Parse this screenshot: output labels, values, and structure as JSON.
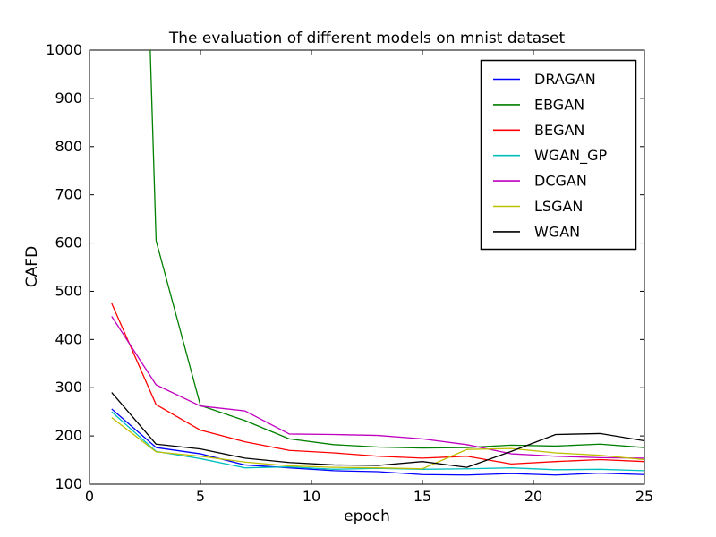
{
  "figure": {
    "title": "The evaluation of different models on mnist dataset",
    "xlabel": "epoch",
    "ylabel": "CAFD"
  },
  "chart_data": {
    "type": "line",
    "title": "The evaluation of different models on mnist dataset",
    "xlabel": "epoch",
    "ylabel": "CAFD",
    "xlim": [
      0,
      25
    ],
    "ylim": [
      100,
      1000
    ],
    "xticks": [
      0,
      5,
      10,
      15,
      20,
      25
    ],
    "yticks": [
      100,
      200,
      300,
      400,
      500,
      600,
      700,
      800,
      900,
      1000
    ],
    "grid": false,
    "legend_position": "upper right",
    "x": [
      1,
      3,
      5,
      7,
      9,
      11,
      13,
      15,
      17,
      19,
      21,
      23,
      25
    ],
    "series": [
      {
        "name": "DRAGAN",
        "color": "#0000ff",
        "values": [
          256,
          176,
          163,
          140,
          134,
          128,
          126,
          120,
          119,
          122,
          119,
          123,
          120
        ]
      },
      {
        "name": "EBGAN",
        "color": "#007f00",
        "values": [
          3600,
          605,
          263,
          232,
          194,
          182,
          177,
          175,
          176,
          181,
          179,
          183,
          176
        ]
      },
      {
        "name": "BEGAN",
        "color": "#ff0000",
        "values": [
          475,
          265,
          212,
          188,
          170,
          165,
          158,
          154,
          158,
          142,
          147,
          151,
          147
        ]
      },
      {
        "name": "WGAN_GP",
        "color": "#00bfbf",
        "values": [
          250,
          168,
          153,
          134,
          136,
          131,
          133,
          131,
          132,
          134,
          130,
          131,
          128
        ]
      },
      {
        "name": "DCGAN",
        "color": "#bf00bf",
        "values": [
          448,
          306,
          262,
          252,
          204,
          203,
          201,
          194,
          182,
          163,
          158,
          155,
          154
        ]
      },
      {
        "name": "LSGAN",
        "color": "#bfbf00",
        "values": [
          238,
          167,
          158,
          146,
          138,
          135,
          134,
          132,
          172,
          174,
          165,
          160,
          151
        ]
      },
      {
        "name": "WGAN",
        "color": "#000000",
        "values": [
          290,
          183,
          173,
          154,
          145,
          140,
          139,
          147,
          135,
          168,
          203,
          205,
          190
        ]
      }
    ]
  }
}
